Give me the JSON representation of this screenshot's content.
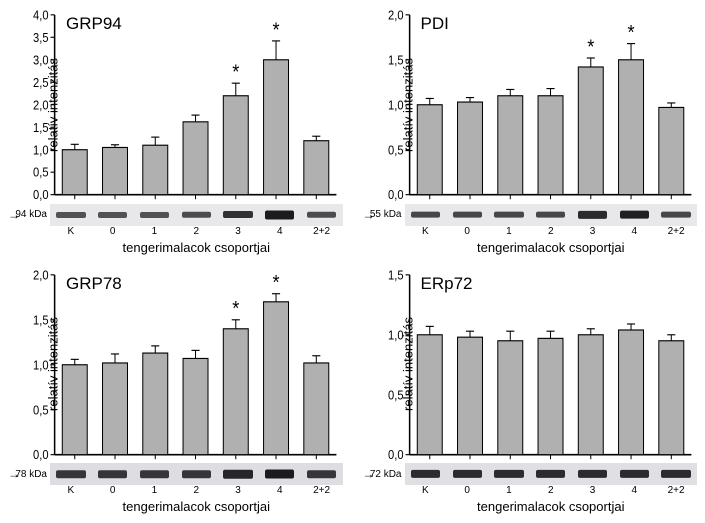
{
  "panels": [
    {
      "title": "GRP94",
      "ylabel": "relatív intenzitás",
      "xlabel": "tengerimalacok csoportjai",
      "kda": "94 kDa",
      "categories": [
        "K",
        "0",
        "1",
        "2",
        "3",
        "4",
        "2+2"
      ],
      "values": [
        1.0,
        1.05,
        1.1,
        1.62,
        2.2,
        3.0,
        1.2
      ],
      "errors": [
        0.12,
        0.06,
        0.18,
        0.15,
        0.28,
        0.42,
        0.1
      ],
      "sig": [
        false,
        false,
        false,
        false,
        true,
        true,
        false
      ],
      "band_intensity": [
        0.35,
        0.35,
        0.35,
        0.4,
        0.65,
        0.85,
        0.4
      ],
      "ymax": 4.0,
      "ytick_step": 0.5,
      "bar_color": "#b0b0b0",
      "bar_border": "#000000",
      "bg": "#ffffff",
      "title_fontsize": 17,
      "label_fontsize": 13,
      "blot_bg": "#e8e8ea"
    },
    {
      "title": "PDI",
      "ylabel": "relatív intenzitás",
      "xlabel": "tengerimalacok csoportjai",
      "kda": "55 kDa",
      "categories": [
        "K",
        "0",
        "1",
        "2",
        "3",
        "4",
        "2+2"
      ],
      "values": [
        1.0,
        1.03,
        1.1,
        1.1,
        1.42,
        1.5,
        0.97
      ],
      "errors": [
        0.07,
        0.05,
        0.07,
        0.08,
        0.1,
        0.18,
        0.05
      ],
      "sig": [
        false,
        false,
        false,
        false,
        true,
        true,
        false
      ],
      "band_intensity": [
        0.45,
        0.45,
        0.45,
        0.45,
        0.7,
        0.8,
        0.45
      ],
      "ymax": 2.0,
      "ytick_step": 0.5,
      "bar_color": "#b0b0b0",
      "bar_border": "#000000",
      "bg": "#ffffff",
      "title_fontsize": 17,
      "label_fontsize": 13,
      "blot_bg": "#e8e8ea"
    },
    {
      "title": "GRP78",
      "ylabel": "relatív intenzitás",
      "xlabel": "tengerimalacok csoportjai",
      "kda": "78 kDa",
      "categories": [
        "K",
        "0",
        "1",
        "2",
        "3",
        "4",
        "2+2"
      ],
      "values": [
        1.0,
        1.02,
        1.13,
        1.07,
        1.4,
        1.7,
        1.02
      ],
      "errors": [
        0.06,
        0.1,
        0.08,
        0.09,
        0.1,
        0.09,
        0.08
      ],
      "sig": [
        false,
        false,
        false,
        false,
        true,
        true,
        false
      ],
      "band_intensity": [
        0.6,
        0.6,
        0.6,
        0.6,
        0.75,
        0.85,
        0.6
      ],
      "ymax": 2.0,
      "ytick_step": 0.5,
      "bar_color": "#b0b0b0",
      "bar_border": "#000000",
      "bg": "#ffffff",
      "title_fontsize": 17,
      "label_fontsize": 13,
      "blot_bg": "#dedee2"
    },
    {
      "title": "ERp72",
      "ylabel": "relatív intenzitás",
      "xlabel": "tengerimalacok csoportjai",
      "kda": "72 kDa",
      "categories": [
        "K",
        "0",
        "1",
        "2",
        "3",
        "4",
        "2+2"
      ],
      "values": [
        1.0,
        0.98,
        0.95,
        0.97,
        1.0,
        1.04,
        0.95
      ],
      "errors": [
        0.07,
        0.05,
        0.08,
        0.06,
        0.05,
        0.05,
        0.05
      ],
      "sig": [
        false,
        false,
        false,
        false,
        false,
        false,
        false
      ],
      "band_intensity": [
        0.7,
        0.7,
        0.7,
        0.7,
        0.7,
        0.7,
        0.7
      ],
      "ymax": 1.5,
      "ytick_step": 0.5,
      "bar_color": "#b0b0b0",
      "bar_border": "#000000",
      "bg": "#ffffff",
      "title_fontsize": 17,
      "label_fontsize": 13,
      "blot_bg": "#e0e0e4"
    }
  ]
}
